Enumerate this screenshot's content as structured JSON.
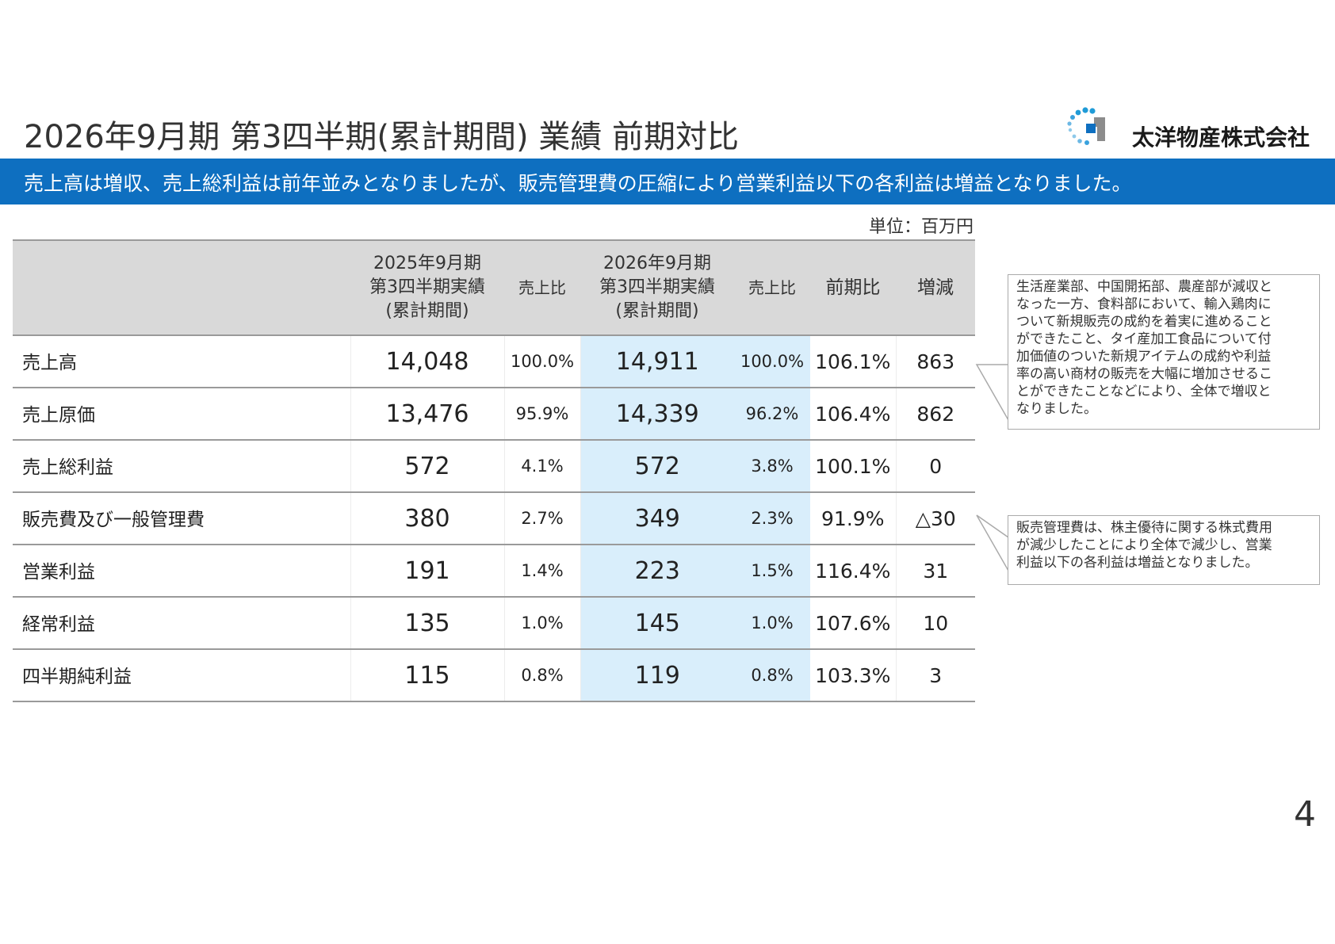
{
  "title": "2026年9月期 第3四半期(累計期間) 業績 前期対比",
  "company": {
    "name": "太洋物産株式会社",
    "logo_icon": "company-logo-icon",
    "logo_colors": [
      "#1f9bd7",
      "#8c8c8c",
      "#0e6fc0"
    ]
  },
  "banner": {
    "text": "売上高は増収、売上総利益は前年並みとなりましたが、販売管理費の圧縮により営業利益以下の各利益は増益となりました。",
    "color": "#0e6fc0"
  },
  "unit": "単位：百万円",
  "table": {
    "header": {
      "prev_line1": "2025年9月期",
      "prev_line2": "第3四半期実績",
      "prev_line3": "(累計期間)",
      "ratio_label": "売上比",
      "cur_line1": "2026年9月期",
      "cur_line2": "第3四半期実績",
      "cur_line3": "(累計期間)",
      "ratio_label_2": "売上比",
      "yoy_label": "前期比",
      "diff_label": "増減"
    },
    "rows": [
      {
        "label": "売上高",
        "prev": "14,048",
        "prev_ratio": "100.0%",
        "cur": "14,911",
        "cur_ratio": "100.0%",
        "yoy": "106.1%",
        "diff": "863"
      },
      {
        "label": "売上原価",
        "prev": "13,476",
        "prev_ratio": "95.9%",
        "cur": "14,339",
        "cur_ratio": "96.2%",
        "yoy": "106.4%",
        "diff": "862"
      },
      {
        "label": "売上総利益",
        "prev": "572",
        "prev_ratio": "4.1%",
        "cur": "572",
        "cur_ratio": "3.8%",
        "yoy": "100.1%",
        "diff": "0"
      },
      {
        "label": "販売費及び一般管理費",
        "prev": "380",
        "prev_ratio": "2.7%",
        "cur": "349",
        "cur_ratio": "2.3%",
        "yoy": "91.9%",
        "diff": "△30"
      },
      {
        "label": "営業利益",
        "prev": "191",
        "prev_ratio": "1.4%",
        "cur": "223",
        "cur_ratio": "1.5%",
        "yoy": "116.4%",
        "diff": "31"
      },
      {
        "label": "経常利益",
        "prev": "135",
        "prev_ratio": "1.0%",
        "cur": "145",
        "cur_ratio": "1.0%",
        "yoy": "107.6%",
        "diff": "10"
      },
      {
        "label": "四半期純利益",
        "prev": "115",
        "prev_ratio": "0.8%",
        "cur": "119",
        "cur_ratio": "0.8%",
        "yoy": "103.3%",
        "diff": "3"
      }
    ],
    "highlight_color": "#d9eefb",
    "header_color": "#d9d9d9"
  },
  "callouts": {
    "sales_lines": [
      "生活産業部、中国開拓部、農産部が減収と",
      "なった一方、食料部において、輸入鶏肉に",
      "ついて新規販売の成約を着実に進めること",
      "ができたこと、タイ産加工食品について付",
      "加価値のついた新規アイテムの成約や利益",
      "率の高い商材の販売を大幅に増加させるこ",
      "とができたことなどにより、全体で増収と",
      "なりました。"
    ],
    "sga_lines": [
      "販売管理費は、株主優待に関する株式費用",
      "が減少したことにより全体で減少し、営業",
      "利益以下の各利益は増益となりました。"
    ]
  },
  "page_number": "4"
}
